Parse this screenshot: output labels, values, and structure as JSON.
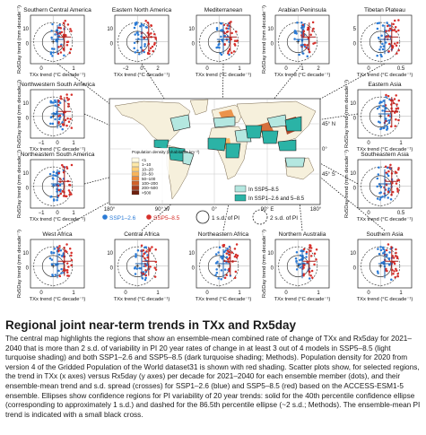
{
  "figure": {
    "panels": [
      {
        "title": "Southern Central America",
        "xticks": [
          "0",
          "1"
        ],
        "yticks": [
          "10",
          "0"
        ],
        "ylabel": "Rx5Day trend (mm decade⁻¹)"
      },
      {
        "title": "Eastern North America",
        "xticks": [
          "−2",
          "0",
          "2"
        ],
        "yticks": [
          "10",
          "0"
        ],
        "ylabel": ""
      },
      {
        "title": "Mediterranean",
        "xticks": [
          "0",
          "1"
        ],
        "yticks": [
          "10",
          "0"
        ],
        "ylabel": ""
      },
      {
        "title": "Arabian Peninsula",
        "xticks": [
          "0",
          "1",
          "2"
        ],
        "yticks": [
          "10",
          "0"
        ],
        "ylabel": "Rx5Day trend (mm decade⁻¹)"
      },
      {
        "title": "Tibetan Plateau",
        "xticks": [
          "0",
          "0.5"
        ],
        "yticks": [
          "5",
          "0"
        ],
        "ylabel": ""
      },
      {
        "title": "Northwestern South America",
        "xticks": [
          "−1",
          "0",
          "1"
        ],
        "yticks": [
          "10",
          "0"
        ],
        "ylabel": "Rx5Day trend (mm decade⁻¹)"
      },
      {
        "title": "Eastern Asia",
        "xticks": [
          "0",
          "1"
        ],
        "yticks": [
          "10",
          "0"
        ],
        "ylabel": "Rx5Day trend (mm decade⁻¹)"
      },
      {
        "title": "Northeastern South America",
        "xticks": [
          "−1",
          "0",
          "1"
        ],
        "yticks": [
          "10",
          "0"
        ],
        "ylabel": "Rx5Day trend (mm decade⁻¹)"
      },
      {
        "title": "Southeastern Asia",
        "xticks": [
          "0",
          "0.5"
        ],
        "yticks": [
          "10",
          "0"
        ],
        "ylabel": "Rx5Day trend (mm decade⁻¹)"
      },
      {
        "title": "West Africa",
        "xticks": [
          "0",
          "1"
        ],
        "yticks": [
          "10",
          "0"
        ],
        "ylabel": "Rx5Day trend (mm decade⁻¹)"
      },
      {
        "title": "Central Africa",
        "xticks": [
          "0",
          "1"
        ],
        "yticks": [
          "10",
          "0"
        ],
        "ylabel": ""
      },
      {
        "title": "Northeastern Africa",
        "xticks": [
          "0",
          "1"
        ],
        "yticks": [
          "10",
          "0"
        ],
        "ylabel": ""
      },
      {
        "title": "Northern Australia",
        "xticks": [
          "0",
          "1"
        ],
        "yticks": [
          "10",
          "0"
        ],
        "ylabel": "Rx5Day trend (mm decade⁻¹)"
      },
      {
        "title": "Southern Asia",
        "xticks": [
          "0",
          "1"
        ],
        "yticks": [
          "10",
          "0"
        ],
        "ylabel": ""
      }
    ],
    "common_xlabel": "TXx trend (°C decade⁻¹)",
    "map": {
      "legend_title": "Population density (inhabitants km⁻²)",
      "density_classes": [
        "<1",
        "1–10",
        "10–20",
        "20–50",
        "50–100",
        "100–200",
        "200–500",
        ">500"
      ],
      "density_colors": [
        "#fffbe6",
        "#fde9a8",
        "#fdd17a",
        "#f7b45a",
        "#ea8a3c",
        "#d2622a",
        "#a83c1c",
        "#6e1f0e"
      ],
      "region_legend": [
        "In SSP5–8.5",
        "In SSP1–2.6 and 5–8.5"
      ],
      "region_colors": [
        "#b4e7e0",
        "#2bb3a6"
      ],
      "lat_labels": [
        "45° N",
        "0°",
        "45° S"
      ],
      "lon_labels": [
        "180°",
        "90° W",
        "0°",
        "90° E",
        "180°"
      ]
    },
    "bottom_legend": {
      "ssp126": "SSP1–2.6",
      "ssp585": "SSP5–8.5",
      "sd1": "1 s.d. of PI",
      "sd2": "2 s.d. of PI",
      "color_ssp126": "#2b7bd6",
      "color_ssp585": "#d6302b"
    }
  },
  "caption": {
    "title": "Regional joint near-term trends in TXx and Rx5day",
    "body": "The central map highlights the regions that show an ensemble-mean combined rate of change of TXx and Rx5day for 2021–2040 that is more than 2 s.d. of variability in PI 20 year rates of change in at least 3 out of 4 models in SSP5–8.5 (light turquoise shading) and both SSP1–2.6 and SSP5–8.5 (dark turquoise shading; Methods). Population density for 2020 from version 4 of the Gridded Population of the World dataset31 is shown with red shading. Scatter plots show, for selected regions, the trend in TXx (x axes) versus Rx5day (y axes) per decade for 2021–2040 for each ensemble member (dots), and their ensemble-mean trend and s.d. spread (crosses) for SSP1–2.6 (blue) and SSP5–8.5 (red) based on the ACCESS-ESM1-5 ensemble. Ellipses show confidence regions for PI variability of 20 year trends: solid for the 40th percentile confidence ellipse (corresponding to approximately 1 s.d.) and dashed for the 86.5th percentile ellipse (~2 s.d.; Methods). The ensemble-mean PI trend is indicated with a small black cross."
  }
}
